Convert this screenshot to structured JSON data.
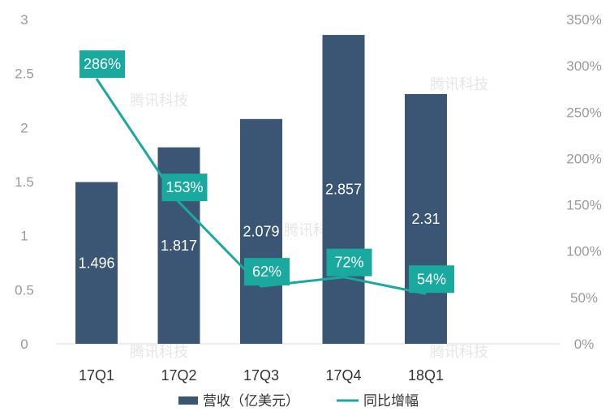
{
  "chart_data": {
    "type": "bar+line",
    "categories": [
      "17Q1",
      "17Q2",
      "17Q3",
      "17Q4",
      "18Q1"
    ],
    "series": [
      {
        "name": "营收（亿美元）",
        "type": "bar",
        "axis": "left",
        "values": [
          1.496,
          1.817,
          2.079,
          2.857,
          2.31
        ],
        "labels": [
          "1.496",
          "1.817",
          "2.079",
          "2.857",
          "2.31"
        ]
      },
      {
        "name": "同比增幅",
        "type": "line",
        "axis": "right",
        "values": [
          286,
          153,
          62,
          72,
          54
        ],
        "labels": [
          "286%",
          "153%",
          "62%",
          "72%",
          "54%"
        ]
      }
    ],
    "y_left": {
      "ylim": [
        0,
        3
      ],
      "ticks": [
        "0",
        "0.5",
        "1",
        "1.5",
        "2",
        "2.5",
        "3"
      ]
    },
    "y_right": {
      "ylim": [
        0,
        350
      ],
      "ticks": [
        "0%",
        "50%",
        "100%",
        "150%",
        "200%",
        "250%",
        "300%",
        "350%"
      ]
    },
    "legend_position": "bottom",
    "grid": false
  },
  "watermark": "腾讯科技",
  "colors": {
    "bar": "#3b5674",
    "line": "#1aa99e",
    "axis": "#d9d9d9"
  }
}
